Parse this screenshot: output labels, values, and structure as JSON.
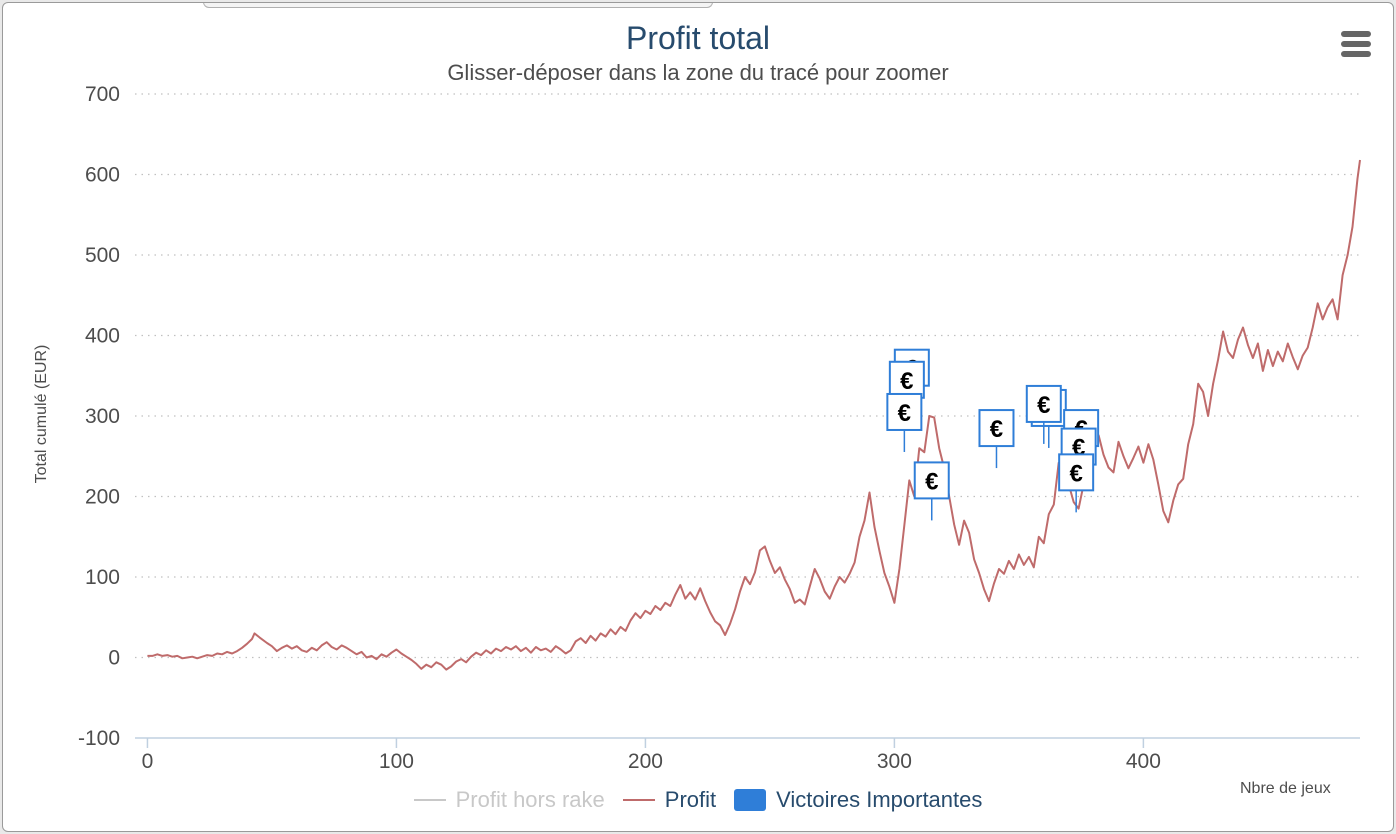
{
  "header": {
    "title": "Profit total",
    "subtitle": "Glisser-déposer dans la zone du tracé pour zoomer",
    "menu_icon": "hamburger-menu-icon"
  },
  "colors": {
    "profit": "#bf6b6b",
    "profit_hors_rake": "#c8c8c8",
    "victoires": "#2f7ed8",
    "grid": "#c0c0c0",
    "axis_text": "#4d4d4d",
    "title": "#274b6d"
  },
  "legend": {
    "items": [
      {
        "label": "Profit hors rake",
        "type": "line",
        "color": "#c8c8c8",
        "hidden": true
      },
      {
        "label": "Profit",
        "type": "line",
        "color": "#bf6b6b",
        "hidden": false
      },
      {
        "label": "Victoires Importantes",
        "type": "box",
        "color": "#2f7ed8",
        "hidden": false
      }
    ]
  },
  "chart_data": {
    "type": "line",
    "title": "Profit total",
    "subtitle": "Glisser-déposer dans la zone du tracé pour zoomer",
    "xlabel": "Nbre de jeux",
    "ylabel": "Total cumulé (EUR)",
    "xlim": [
      -5,
      487
    ],
    "ylim": [
      -100,
      700
    ],
    "x_ticks": [
      0,
      100,
      200,
      300,
      400
    ],
    "y_ticks": [
      -100,
      0,
      100,
      200,
      300,
      400,
      500,
      600,
      700
    ],
    "grid": "horizontal dotted",
    "legend_position": "bottom",
    "series": [
      {
        "name": "Profit",
        "color": "#bf6b6b",
        "points": [
          [
            0,
            2
          ],
          [
            2,
            2
          ],
          [
            4,
            4
          ],
          [
            6,
            2
          ],
          [
            8,
            3
          ],
          [
            10,
            1
          ],
          [
            12,
            2
          ],
          [
            14,
            -1
          ],
          [
            16,
            0
          ],
          [
            18,
            1
          ],
          [
            20,
            -1
          ],
          [
            22,
            1
          ],
          [
            24,
            3
          ],
          [
            26,
            2
          ],
          [
            28,
            5
          ],
          [
            30,
            4
          ],
          [
            32,
            7
          ],
          [
            34,
            5
          ],
          [
            36,
            8
          ],
          [
            38,
            12
          ],
          [
            40,
            17
          ],
          [
            42,
            23
          ],
          [
            43,
            30
          ],
          [
            45,
            25
          ],
          [
            48,
            18
          ],
          [
            50,
            14
          ],
          [
            52,
            8
          ],
          [
            54,
            12
          ],
          [
            56,
            15
          ],
          [
            58,
            11
          ],
          [
            60,
            14
          ],
          [
            62,
            9
          ],
          [
            64,
            7
          ],
          [
            66,
            12
          ],
          [
            68,
            9
          ],
          [
            70,
            15
          ],
          [
            72,
            19
          ],
          [
            74,
            13
          ],
          [
            76,
            10
          ],
          [
            78,
            15
          ],
          [
            80,
            12
          ],
          [
            82,
            8
          ],
          [
            84,
            4
          ],
          [
            86,
            7
          ],
          [
            88,
            0
          ],
          [
            90,
            2
          ],
          [
            92,
            -2
          ],
          [
            94,
            4
          ],
          [
            96,
            1
          ],
          [
            98,
            6
          ],
          [
            100,
            10
          ],
          [
            102,
            5
          ],
          [
            104,
            1
          ],
          [
            106,
            -3
          ],
          [
            108,
            -8
          ],
          [
            110,
            -14
          ],
          [
            112,
            -9
          ],
          [
            114,
            -12
          ],
          [
            116,
            -6
          ],
          [
            118,
            -9
          ],
          [
            120,
            -15
          ],
          [
            122,
            -11
          ],
          [
            124,
            -5
          ],
          [
            126,
            -2
          ],
          [
            128,
            -6
          ],
          [
            130,
            1
          ],
          [
            132,
            6
          ],
          [
            134,
            3
          ],
          [
            136,
            9
          ],
          [
            138,
            5
          ],
          [
            140,
            11
          ],
          [
            142,
            8
          ],
          [
            144,
            13
          ],
          [
            146,
            10
          ],
          [
            148,
            14
          ],
          [
            150,
            8
          ],
          [
            152,
            12
          ],
          [
            154,
            6
          ],
          [
            156,
            13
          ],
          [
            158,
            9
          ],
          [
            160,
            11
          ],
          [
            162,
            7
          ],
          [
            164,
            14
          ],
          [
            166,
            10
          ],
          [
            168,
            5
          ],
          [
            170,
            9
          ],
          [
            172,
            20
          ],
          [
            174,
            24
          ],
          [
            176,
            18
          ],
          [
            178,
            27
          ],
          [
            180,
            21
          ],
          [
            182,
            30
          ],
          [
            184,
            26
          ],
          [
            186,
            35
          ],
          [
            188,
            29
          ],
          [
            190,
            38
          ],
          [
            192,
            33
          ],
          [
            194,
            46
          ],
          [
            196,
            55
          ],
          [
            198,
            49
          ],
          [
            200,
            58
          ],
          [
            202,
            54
          ],
          [
            204,
            64
          ],
          [
            206,
            59
          ],
          [
            208,
            68
          ],
          [
            210,
            64
          ],
          [
            212,
            78
          ],
          [
            214,
            90
          ],
          [
            216,
            73
          ],
          [
            218,
            81
          ],
          [
            220,
            72
          ],
          [
            222,
            86
          ],
          [
            224,
            70
          ],
          [
            226,
            56
          ],
          [
            228,
            45
          ],
          [
            230,
            40
          ],
          [
            232,
            28
          ],
          [
            234,
            42
          ],
          [
            236,
            60
          ],
          [
            238,
            82
          ],
          [
            240,
            100
          ],
          [
            242,
            91
          ],
          [
            244,
            106
          ],
          [
            246,
            133
          ],
          [
            248,
            138
          ],
          [
            250,
            120
          ],
          [
            252,
            105
          ],
          [
            254,
            112
          ],
          [
            256,
            97
          ],
          [
            258,
            85
          ],
          [
            260,
            68
          ],
          [
            262,
            72
          ],
          [
            264,
            66
          ],
          [
            266,
            88
          ],
          [
            268,
            110
          ],
          [
            270,
            98
          ],
          [
            272,
            82
          ],
          [
            274,
            73
          ],
          [
            276,
            88
          ],
          [
            278,
            100
          ],
          [
            280,
            93
          ],
          [
            282,
            104
          ],
          [
            284,
            118
          ],
          [
            286,
            150
          ],
          [
            288,
            170
          ],
          [
            290,
            205
          ],
          [
            292,
            162
          ],
          [
            294,
            132
          ],
          [
            296,
            105
          ],
          [
            298,
            88
          ],
          [
            300,
            68
          ],
          [
            302,
            110
          ],
          [
            304,
            165
          ],
          [
            306,
            220
          ],
          [
            308,
            200
          ],
          [
            310,
            260
          ],
          [
            312,
            255
          ],
          [
            314,
            300
          ],
          [
            316,
            298
          ],
          [
            318,
            260
          ],
          [
            320,
            235
          ],
          [
            322,
            200
          ],
          [
            324,
            165
          ],
          [
            326,
            140
          ],
          [
            328,
            170
          ],
          [
            330,
            155
          ],
          [
            332,
            122
          ],
          [
            334,
            105
          ],
          [
            336,
            85
          ],
          [
            338,
            70
          ],
          [
            340,
            92
          ],
          [
            342,
            110
          ],
          [
            344,
            104
          ],
          [
            346,
            120
          ],
          [
            348,
            110
          ],
          [
            350,
            128
          ],
          [
            352,
            115
          ],
          [
            354,
            125
          ],
          [
            356,
            112
          ],
          [
            358,
            150
          ],
          [
            360,
            142
          ],
          [
            362,
            178
          ],
          [
            364,
            190
          ],
          [
            366,
            242
          ],
          [
            368,
            220
          ],
          [
            370,
            215
          ],
          [
            372,
            193
          ],
          [
            374,
            185
          ],
          [
            376,
            215
          ],
          [
            378,
            240
          ],
          [
            380,
            262
          ],
          [
            382,
            276
          ],
          [
            384,
            252
          ],
          [
            386,
            236
          ],
          [
            388,
            230
          ],
          [
            390,
            268
          ],
          [
            392,
            250
          ],
          [
            394,
            235
          ],
          [
            396,
            248
          ],
          [
            398,
            262
          ],
          [
            400,
            242
          ],
          [
            402,
            265
          ],
          [
            404,
            246
          ],
          [
            406,
            215
          ],
          [
            408,
            182
          ],
          [
            410,
            168
          ],
          [
            412,
            195
          ],
          [
            414,
            215
          ],
          [
            416,
            222
          ],
          [
            418,
            265
          ],
          [
            420,
            290
          ],
          [
            422,
            340
          ],
          [
            424,
            330
          ],
          [
            426,
            300
          ],
          [
            428,
            340
          ],
          [
            430,
            370
          ],
          [
            432,
            405
          ],
          [
            434,
            380
          ],
          [
            436,
            372
          ],
          [
            438,
            395
          ],
          [
            440,
            410
          ],
          [
            442,
            388
          ],
          [
            444,
            372
          ],
          [
            446,
            390
          ],
          [
            448,
            356
          ],
          [
            450,
            382
          ],
          [
            452,
            362
          ],
          [
            454,
            380
          ],
          [
            456,
            368
          ],
          [
            458,
            390
          ],
          [
            460,
            373
          ],
          [
            462,
            358
          ],
          [
            464,
            375
          ],
          [
            466,
            385
          ],
          [
            468,
            410
          ],
          [
            470,
            440
          ],
          [
            472,
            420
          ],
          [
            474,
            435
          ],
          [
            476,
            445
          ],
          [
            478,
            420
          ],
          [
            480,
            475
          ],
          [
            482,
            500
          ],
          [
            484,
            535
          ],
          [
            486,
            595
          ],
          [
            487,
            618
          ]
        ]
      }
    ],
    "markers": {
      "name": "Victoires Importantes",
      "glyph": "€",
      "items": [
        {
          "x": 307,
          "y": 360
        },
        {
          "x": 305,
          "y": 345
        },
        {
          "x": 304,
          "y": 305
        },
        {
          "x": 315,
          "y": 220
        },
        {
          "x": 341,
          "y": 285
        },
        {
          "x": 362,
          "y": 310
        },
        {
          "x": 360,
          "y": 315
        },
        {
          "x": 375,
          "y": 285
        },
        {
          "x": 374,
          "y": 262
        },
        {
          "x": 373,
          "y": 230
        }
      ]
    }
  }
}
